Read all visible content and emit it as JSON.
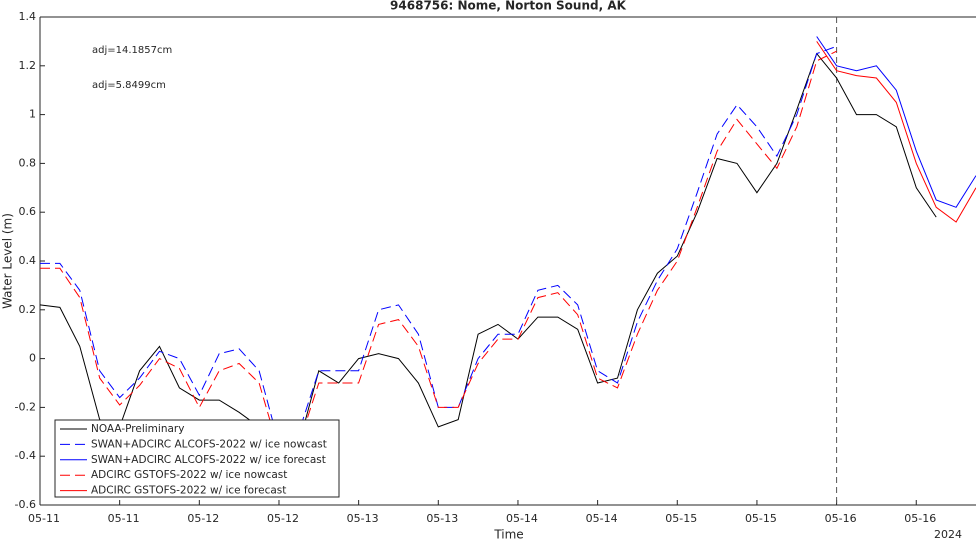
{
  "chart_data": {
    "type": "line",
    "title": "9468756: Nome, Norton Sound, AK",
    "x_label": "Time",
    "y_label": "Water Level (m)",
    "x_extra_label": "2024",
    "annotations": [
      {
        "text": "adj=14.1857cm",
        "color": "#0000ff"
      },
      {
        "text": "adj=5.8499cm",
        "color": "#ff0000"
      }
    ],
    "x": [
      0,
      3,
      6,
      9,
      12,
      15,
      18,
      21,
      24,
      27,
      30,
      33,
      36,
      39,
      42,
      45,
      48,
      51,
      54,
      57,
      60,
      63,
      66,
      69,
      72,
      75,
      78,
      81,
      84,
      87,
      90,
      93,
      96,
      99,
      102,
      105,
      108,
      111,
      114,
      117,
      120,
      123,
      126,
      129,
      132,
      135,
      138,
      141
    ],
    "xlim": [
      0,
      141
    ],
    "xticks": [
      {
        "value": 0,
        "label": "05-11"
      },
      {
        "value": 12,
        "label": "05-11"
      },
      {
        "value": 24,
        "label": "05-12"
      },
      {
        "value": 36,
        "label": "05-12"
      },
      {
        "value": 48,
        "label": "05-13"
      },
      {
        "value": 60,
        "label": "05-13"
      },
      {
        "value": 72,
        "label": "05-14"
      },
      {
        "value": 84,
        "label": "05-14"
      },
      {
        "value": 96,
        "label": "05-15"
      },
      {
        "value": 108,
        "label": "05-15"
      },
      {
        "value": 120,
        "label": "05-16"
      },
      {
        "value": 132,
        "label": "05-16"
      }
    ],
    "ylim": [
      -0.6,
      1.4
    ],
    "yticks": [
      -0.6,
      -0.4,
      -0.2,
      0,
      0.2,
      0.4,
      0.6,
      0.8,
      1,
      1.2,
      1.4
    ],
    "vline_x": 120,
    "series": [
      {
        "name": "NOAA-Preliminary",
        "color": "#000000",
        "dash": false,
        "values": [
          0.22,
          0.21,
          0.05,
          -0.25,
          -0.28,
          -0.05,
          0.05,
          -0.12,
          -0.17,
          -0.17,
          -0.22,
          -0.28,
          -0.4,
          -0.35,
          -0.05,
          -0.1,
          0.0,
          0.02,
          0.0,
          -0.1,
          -0.28,
          -0.25,
          0.1,
          0.14,
          0.08,
          0.17,
          0.17,
          0.12,
          -0.1,
          -0.08,
          0.2,
          0.35,
          0.42,
          0.6,
          0.82,
          0.8,
          0.68,
          0.8,
          1.02,
          1.25,
          1.15,
          1.0,
          1.0,
          0.95,
          0.7,
          0.58,
          null,
          null
        ]
      },
      {
        "name": "SWAN+ADCIRC ALCOFS-2022 w/ ice nowcast",
        "color": "#0000ff",
        "dash": true,
        "values": [
          0.39,
          0.39,
          0.28,
          -0.05,
          -0.16,
          -0.08,
          0.03,
          0.0,
          -0.15,
          0.02,
          0.04,
          -0.05,
          -0.35,
          -0.3,
          -0.05,
          -0.05,
          -0.05,
          0.2,
          0.22,
          0.1,
          -0.2,
          -0.2,
          0.0,
          0.1,
          0.1,
          0.28,
          0.3,
          0.22,
          -0.05,
          -0.1,
          0.15,
          0.32,
          0.45,
          0.68,
          0.92,
          1.04,
          0.95,
          0.83,
          1.0,
          1.25,
          1.28,
          null,
          null,
          null,
          null,
          null,
          null,
          null
        ]
      },
      {
        "name": "SWAN+ADCIRC ALCOFS-2022 w/ ice forecast",
        "color": "#0000ff",
        "dash": false,
        "values": [
          null,
          null,
          null,
          null,
          null,
          null,
          null,
          null,
          null,
          null,
          null,
          null,
          null,
          null,
          null,
          null,
          null,
          null,
          null,
          null,
          null,
          null,
          null,
          null,
          null,
          null,
          null,
          null,
          null,
          null,
          null,
          null,
          null,
          null,
          null,
          null,
          null,
          null,
          null,
          1.32,
          1.2,
          1.18,
          1.2,
          1.1,
          0.85,
          0.65,
          0.62,
          0.75
        ]
      },
      {
        "name": "ADCIRC GSTOFS-2022 w/ ice nowcast",
        "color": "#ff0000",
        "dash": true,
        "values": [
          0.37,
          0.37,
          0.25,
          -0.08,
          -0.19,
          -0.11,
          0.0,
          -0.04,
          -0.2,
          -0.05,
          -0.02,
          -0.1,
          -0.38,
          -0.35,
          -0.1,
          -0.1,
          -0.1,
          0.14,
          0.16,
          0.05,
          -0.2,
          -0.2,
          -0.02,
          0.08,
          0.08,
          0.25,
          0.27,
          0.18,
          -0.08,
          -0.12,
          0.1,
          0.28,
          0.4,
          0.62,
          0.85,
          0.98,
          0.88,
          0.78,
          0.95,
          1.22,
          1.26,
          null,
          null,
          null,
          null,
          null,
          null,
          null
        ]
      },
      {
        "name": "ADCIRC GSTOFS-2022 w/ ice forecast",
        "color": "#ff0000",
        "dash": false,
        "values": [
          null,
          null,
          null,
          null,
          null,
          null,
          null,
          null,
          null,
          null,
          null,
          null,
          null,
          null,
          null,
          null,
          null,
          null,
          null,
          null,
          null,
          null,
          null,
          null,
          null,
          null,
          null,
          null,
          null,
          null,
          null,
          null,
          null,
          null,
          null,
          null,
          null,
          null,
          null,
          1.3,
          1.18,
          1.16,
          1.15,
          1.05,
          0.8,
          0.62,
          0.56,
          0.7
        ]
      }
    ]
  }
}
